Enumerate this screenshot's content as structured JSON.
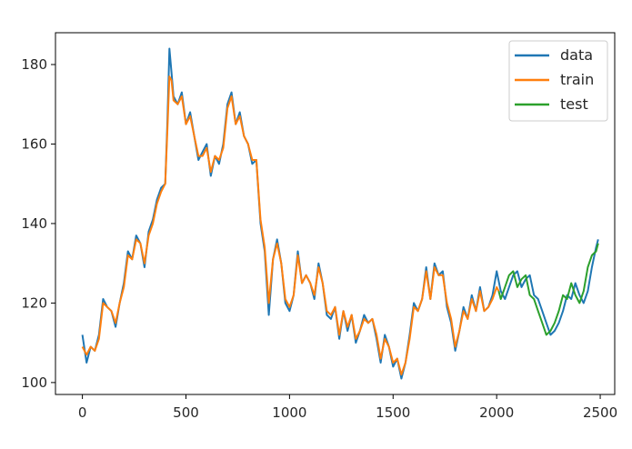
{
  "chart_data": {
    "type": "line",
    "title": "",
    "xlabel": "",
    "ylabel": "",
    "xlim": [
      -130,
      2570
    ],
    "ylim": [
      97,
      188
    ],
    "grid": false,
    "legend_placement": "top-right",
    "x_ticks": [
      0,
      500,
      1000,
      1500,
      2000,
      2500
    ],
    "x_tick_labels": [
      "0",
      "500",
      "1000",
      "1500",
      "2000",
      "2500"
    ],
    "y_ticks": [
      100,
      120,
      140,
      160,
      180
    ],
    "y_tick_labels": [
      "100",
      "120",
      "140",
      "160",
      "180"
    ],
    "series": [
      {
        "name": "data",
        "color": "#1f77b4",
        "x": [
          0,
          20,
          40,
          60,
          80,
          100,
          120,
          140,
          160,
          180,
          200,
          220,
          240,
          260,
          280,
          300,
          320,
          340,
          360,
          380,
          400,
          410,
          420,
          430,
          440,
          460,
          480,
          500,
          520,
          540,
          560,
          580,
          600,
          620,
          640,
          660,
          680,
          700,
          720,
          740,
          760,
          780,
          800,
          820,
          840,
          860,
          880,
          900,
          920,
          940,
          960,
          980,
          1000,
          1020,
          1040,
          1060,
          1080,
          1100,
          1120,
          1140,
          1160,
          1180,
          1200,
          1220,
          1240,
          1260,
          1280,
          1300,
          1320,
          1340,
          1360,
          1380,
          1400,
          1420,
          1440,
          1460,
          1480,
          1500,
          1520,
          1540,
          1560,
          1580,
          1600,
          1620,
          1640,
          1660,
          1680,
          1700,
          1720,
          1740,
          1760,
          1780,
          1800,
          1820,
          1840,
          1860,
          1880,
          1900,
          1920,
          1940,
          1960,
          1980,
          2000,
          2020,
          2040,
          2060,
          2080,
          2100,
          2120,
          2140,
          2160,
          2180,
          2200,
          2220,
          2240,
          2260,
          2280,
          2300,
          2320,
          2340,
          2360,
          2380,
          2400,
          2420,
          2440,
          2460,
          2480,
          2490
        ],
        "values": [
          112,
          105,
          109,
          108,
          112,
          121,
          119,
          118,
          114,
          120,
          125,
          133,
          131,
          137,
          135,
          129,
          138,
          141,
          146,
          149,
          150,
          165,
          184,
          178,
          172,
          170,
          173,
          165,
          168,
          162,
          156,
          158,
          160,
          152,
          157,
          155,
          160,
          170,
          173,
          165,
          168,
          162,
          160,
          155,
          156,
          140,
          133,
          117,
          131,
          136,
          130,
          120,
          118,
          122,
          133,
          125,
          127,
          125,
          121,
          130,
          125,
          117,
          116,
          119,
          111,
          118,
          113,
          117,
          110,
          113,
          117,
          115,
          116,
          111,
          105,
          112,
          109,
          104,
          106,
          101,
          105,
          112,
          120,
          118,
          121,
          129,
          121,
          130,
          127,
          128,
          119,
          115,
          108,
          113,
          119,
          116,
          122,
          118,
          124,
          118,
          119,
          122,
          128,
          123,
          121,
          124,
          127,
          128,
          124,
          126,
          127,
          122,
          121,
          118,
          115,
          112,
          113,
          115,
          118,
          122,
          121,
          125,
          122,
          120,
          123,
          129,
          134,
          136
        ]
      },
      {
        "name": "train",
        "color": "#ff7f0e",
        "x": [
          0,
          20,
          40,
          60,
          80,
          100,
          120,
          140,
          160,
          180,
          200,
          220,
          240,
          260,
          280,
          300,
          320,
          340,
          360,
          380,
          400,
          410,
          420,
          430,
          440,
          460,
          480,
          500,
          520,
          540,
          560,
          580,
          600,
          620,
          640,
          660,
          680,
          700,
          720,
          740,
          760,
          780,
          800,
          820,
          840,
          860,
          880,
          900,
          920,
          940,
          960,
          980,
          1000,
          1020,
          1040,
          1060,
          1080,
          1100,
          1120,
          1140,
          1160,
          1180,
          1200,
          1220,
          1240,
          1260,
          1280,
          1300,
          1320,
          1340,
          1360,
          1380,
          1400,
          1420,
          1440,
          1460,
          1480,
          1500,
          1520,
          1540,
          1560,
          1580,
          1600,
          1620,
          1640,
          1660,
          1680,
          1700,
          1720,
          1740,
          1760,
          1780,
          1800,
          1820,
          1840,
          1860,
          1880,
          1900,
          1920,
          1940,
          1960,
          1980,
          2000,
          2010
        ],
        "values": [
          109,
          107,
          109,
          108,
          111,
          120,
          119,
          118,
          115,
          120,
          124,
          132,
          131,
          136,
          135,
          130,
          137,
          140,
          145,
          148,
          150,
          163,
          177,
          176,
          171,
          170,
          172,
          165,
          167,
          162,
          157,
          157,
          159,
          153,
          157,
          156,
          159,
          169,
          172,
          165,
          167,
          162,
          160,
          156,
          156,
          141,
          134,
          120,
          131,
          135,
          130,
          121,
          119,
          122,
          132,
          125,
          127,
          125,
          122,
          129,
          125,
          118,
          117,
          119,
          112,
          118,
          114,
          117,
          111,
          113,
          116,
          115,
          116,
          112,
          106,
          111,
          109,
          105,
          106,
          102,
          105,
          111,
          119,
          118,
          121,
          128,
          121,
          129,
          127,
          127,
          120,
          116,
          109,
          113,
          118,
          116,
          121,
          118,
          123,
          118,
          119,
          121,
          124,
          123
        ]
      },
      {
        "name": "test",
        "color": "#2ca02c",
        "x": [
          2010,
          2020,
          2040,
          2060,
          2080,
          2100,
          2120,
          2140,
          2160,
          2180,
          2200,
          2220,
          2240,
          2260,
          2280,
          2300,
          2320,
          2340,
          2360,
          2380,
          2400,
          2420,
          2440,
          2460,
          2480,
          2490
        ],
        "values": [
          123,
          121,
          124,
          127,
          128,
          124,
          126,
          127,
          122,
          121,
          118,
          115,
          112,
          113,
          115,
          118,
          122,
          121,
          125,
          122,
          120,
          123,
          129,
          132,
          133,
          135
        ]
      }
    ]
  }
}
